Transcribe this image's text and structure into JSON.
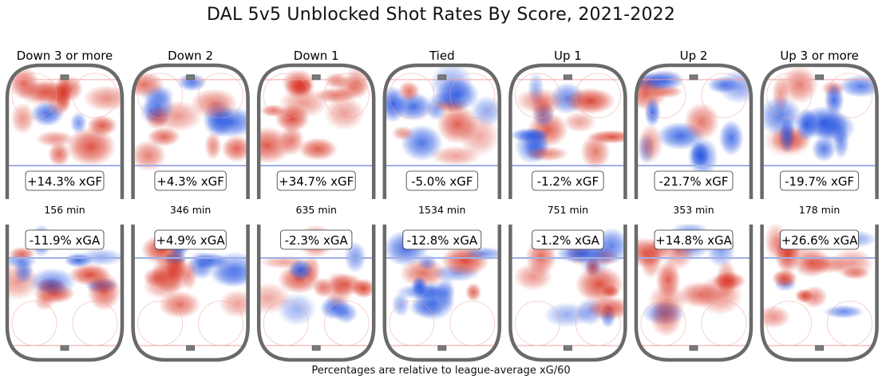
{
  "chart_data": {
    "type": "heatmap",
    "title": "DAL 5v5 Unblocked Shot Rates By Score, 2021-2022",
    "caption": "Percentages are relative to league-average xG/60",
    "panels": [
      {
        "label": "Down 3 or more",
        "xgf": "+14.3% xGF",
        "minutes": "156 min",
        "xga": "-11.9% xGA"
      },
      {
        "label": "Down 2",
        "xgf": "+4.3% xGF",
        "minutes": "346 min",
        "xga": "+4.9% xGA"
      },
      {
        "label": "Down 1",
        "xgf": "+34.7% xGF",
        "minutes": "635 min",
        "xga": "-2.3% xGA"
      },
      {
        "label": "Tied",
        "xgf": "-5.0% xGF",
        "minutes": "1534 min",
        "xga": "-12.8% xGA"
      },
      {
        "label": "Up 1",
        "xgf": "-1.2% xGF",
        "minutes": "751 min",
        "xga": "-1.2% xGA"
      },
      {
        "label": "Up 2",
        "xgf": "-21.7% xGF",
        "minutes": "353 min",
        "xga": "+14.8% xGA"
      },
      {
        "label": "Up 3 or more",
        "xgf": "-19.7% xGF",
        "minutes": "178 min",
        "xga": "+26.6% xGA"
      }
    ],
    "colors": {
      "above_average": "#d7301f",
      "below_average": "#1f4fe0",
      "rink_border": "#6a6a6a",
      "blue_line": "#9fb0e6",
      "red_line": "#f0a0a0"
    }
  }
}
